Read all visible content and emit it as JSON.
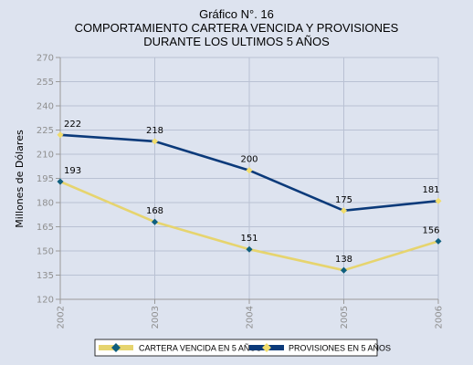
{
  "chart_data": {
    "type": "line",
    "title_lines": [
      "Gráfico N°. 16",
      "COMPORTAMIENTO CARTERA VENCIDA Y PROVISIONES",
      "DURANTE LOS ULTIMOS 5 AÑOS"
    ],
    "xlabel": "",
    "ylabel": "Millones de Dólares",
    "x": [
      "2002",
      "2003",
      "2004",
      "2005",
      "2006"
    ],
    "ylim": [
      120,
      270
    ],
    "yticks": [
      120,
      135,
      150,
      165,
      180,
      195,
      210,
      225,
      240,
      255,
      270
    ],
    "grid": true,
    "legend_position": "bottom",
    "series": [
      {
        "name": "CARTERA VENCIDA EN 5 AÑOS",
        "values": [
          193,
          168,
          151,
          138,
          156
        ],
        "line_color": "#e6d46e",
        "marker_color": "#0f5f7e"
      },
      {
        "name": "PROVISIONES EN 5 AÑOS",
        "values": [
          222,
          218,
          200,
          175,
          181
        ],
        "line_color": "#0b3a7a",
        "marker_color": "#f0dc6c"
      }
    ]
  }
}
